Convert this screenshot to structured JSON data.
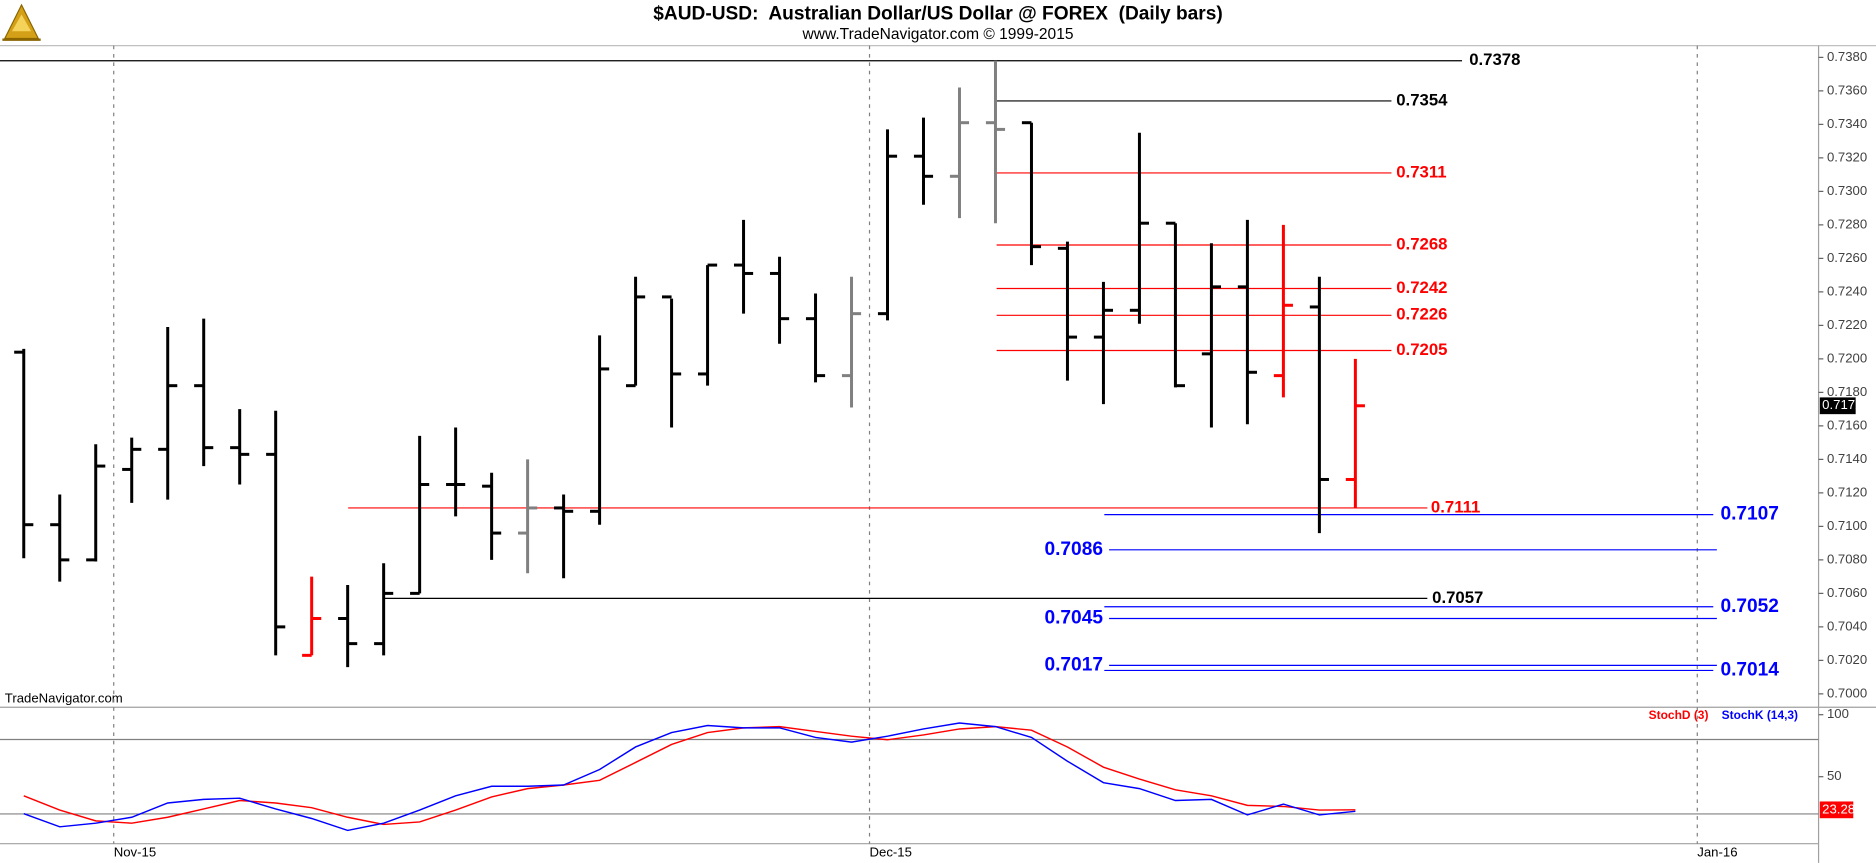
{
  "chart_data": [
    {
      "type": "ohlc",
      "title": "$AUD-USD:  Australian Dollar/US Dollar @ FOREX  (Daily bars)",
      "subtitle": "www.TradeNavigator.com © 1999-2015",
      "watermark": "TradeNavigator.com",
      "categories": [
        null,
        null,
        null,
        null,
        null,
        null,
        null,
        null,
        null,
        null,
        null,
        null,
        null,
        null,
        null,
        null,
        null,
        null,
        null,
        null,
        null,
        null,
        null,
        null,
        null,
        null,
        null,
        null,
        null,
        null,
        null,
        null,
        null,
        null,
        null,
        null,
        null,
        null
      ],
      "open": [
        0.7204,
        0.7101,
        0.708,
        0.7134,
        0.7146,
        0.7184,
        0.7147,
        0.7143,
        0.7023,
        0.7045,
        0.703,
        0.706,
        0.7125,
        0.7124,
        0.7096,
        0.7111,
        0.7109,
        0.7184,
        0.7237,
        0.7191,
        0.7256,
        0.7251,
        0.7224,
        0.719,
        0.7227,
        0.7321,
        0.7309,
        0.7341,
        0.7341,
        0.7266,
        0.7213,
        0.7229,
        0.7281,
        0.7203,
        0.7243,
        0.719,
        0.7231,
        0.7128
      ],
      "high": [
        0.7206,
        0.7119,
        0.7149,
        0.7153,
        0.7219,
        0.7224,
        0.717,
        0.7169,
        0.707,
        0.7065,
        0.7078,
        0.7154,
        0.7159,
        0.7132,
        0.714,
        0.7119,
        0.7214,
        0.7249,
        0.7236,
        0.7256,
        0.7283,
        0.7261,
        0.7239,
        0.7249,
        0.7337,
        0.7344,
        0.7362,
        0.7378,
        0.7341,
        0.727,
        0.7246,
        0.7335,
        0.7281,
        0.7269,
        0.7283,
        0.728,
        0.7249,
        0.72
      ],
      "low": [
        0.7081,
        0.7067,
        0.7079,
        0.7114,
        0.7116,
        0.7136,
        0.7125,
        0.7023,
        0.7023,
        0.7016,
        0.7023,
        0.706,
        0.7106,
        0.708,
        0.7072,
        0.7069,
        0.7101,
        0.7184,
        0.7159,
        0.7184,
        0.7227,
        0.7209,
        0.7186,
        0.7171,
        0.7223,
        0.7292,
        0.7284,
        0.7281,
        0.7256,
        0.7187,
        0.7173,
        0.7221,
        0.7183,
        0.7159,
        0.7161,
        0.7177,
        0.7096,
        0.7111
      ],
      "close": [
        0.7101,
        0.708,
        0.7136,
        0.7146,
        0.7184,
        0.7147,
        0.7143,
        0.704,
        0.7045,
        0.703,
        0.706,
        0.7125,
        0.7125,
        0.7096,
        0.7111,
        0.7109,
        0.7194,
        0.7237,
        0.7191,
        0.7256,
        0.7251,
        0.7224,
        0.719,
        0.7227,
        0.7321,
        0.7309,
        0.7341,
        0.7337,
        0.7267,
        0.7213,
        0.7229,
        0.7281,
        0.7184,
        0.7243,
        0.7192,
        0.7232,
        0.7128,
        0.7172
      ],
      "bar_colors": [
        "#000000",
        "#000000",
        "#000000",
        "#000000",
        "#000000",
        "#000000",
        "#000000",
        "#000000",
        "#ff0000",
        "#000000",
        "#000000",
        "#000000",
        "#000000",
        "#000000",
        "#808080",
        "#000000",
        "#000000",
        "#000000",
        "#000000",
        "#000000",
        "#000000",
        "#000000",
        "#000000",
        "#808080",
        "#000000",
        "#000000",
        "#808080",
        "#808080",
        "#000000",
        "#000000",
        "#000000",
        "#000000",
        "#000000",
        "#000000",
        "#000000",
        "#ff0000",
        "#000000",
        "#ff0000"
      ],
      "xlim": [
        -0.66,
        49.87
      ],
      "xticks": [
        {
          "value": 2.5,
          "label": "Nov-15"
        },
        {
          "value": 23.5,
          "label": "Dec-15"
        },
        {
          "value": 46.5,
          "label": "Jan-16"
        }
      ],
      "ylim": [
        0.6992,
        0.7387
      ],
      "yticks": [
        {
          "value": 0.7,
          "label": "0.7000"
        },
        {
          "value": 0.702,
          "label": "0.7020"
        },
        {
          "value": 0.704,
          "label": "0.7040"
        },
        {
          "value": 0.706,
          "label": "0.7060"
        },
        {
          "value": 0.708,
          "label": "0.7080"
        },
        {
          "value": 0.71,
          "label": "0.7100"
        },
        {
          "value": 0.712,
          "label": "0.7120"
        },
        {
          "value": 0.714,
          "label": "0.7140"
        },
        {
          "value": 0.716,
          "label": "0.7160"
        },
        {
          "value": 0.718,
          "label": "0.7180"
        },
        {
          "value": 0.72,
          "label": "0.7200"
        },
        {
          "value": 0.722,
          "label": "0.7220"
        },
        {
          "value": 0.724,
          "label": "0.7240"
        },
        {
          "value": 0.726,
          "label": "0.7260"
        },
        {
          "value": 0.728,
          "label": "0.7280"
        },
        {
          "value": 0.73,
          "label": "0.7300"
        },
        {
          "value": 0.732,
          "label": "0.7320"
        },
        {
          "value": 0.734,
          "label": "0.7340"
        },
        {
          "value": 0.736,
          "label": "0.7360"
        },
        {
          "value": 0.738,
          "label": "0.7380"
        }
      ],
      "grid": true,
      "levels": [
        {
          "value": 0.7378,
          "color": "#000000"
        },
        {
          "value": 0.7354,
          "color": "#000000"
        },
        {
          "value": 0.7311,
          "color": "#ff0000"
        },
        {
          "value": 0.7268,
          "color": "#ff0000"
        },
        {
          "value": 0.7242,
          "color": "#ff0000"
        },
        {
          "value": 0.7226,
          "color": "#ff0000"
        },
        {
          "value": 0.7205,
          "color": "#ff0000"
        },
        {
          "value": 0.7111,
          "color": "#ff0000"
        },
        {
          "value": 0.7107,
          "color": "#0000ff"
        },
        {
          "value": 0.7086,
          "color": "#0000ff"
        },
        {
          "value": 0.7057,
          "color": "#000000"
        },
        {
          "value": 0.7052,
          "color": "#0000ff"
        },
        {
          "value": 0.7045,
          "color": "#0000ff"
        },
        {
          "value": 0.7017,
          "color": "#0000ff"
        },
        {
          "value": 0.7014,
          "color": "#0000ff"
        }
      ]
    },
    {
      "type": "line",
      "series": [
        {
          "name": "StochD (3)",
          "color": "#ff0000",
          "values": [
            34.6,
            23.1,
            14.4,
            12.5,
            17.3,
            24.0,
            30.8,
            28.8,
            25.0,
            17.3,
            11.5,
            13.5,
            23.1,
            33.7,
            40.4,
            43.3,
            47.1,
            61.5,
            76.0,
            85.6,
            89.4,
            90.4,
            86.5,
            82.7,
            79.8,
            83.7,
            88.5,
            90.4,
            87.5,
            74.0,
            57.7,
            48.1,
            39.4,
            34.6,
            26.9,
            26.0,
            23.1,
            23.28
          ]
        },
        {
          "name": "StochK (14,3)",
          "color": "#0000ff",
          "values": [
            20.2,
            9.6,
            12.5,
            17.3,
            28.8,
            31.7,
            32.7,
            24.0,
            16.3,
            6.7,
            12.5,
            23.1,
            34.6,
            42.3,
            42.3,
            43.3,
            55.8,
            74.0,
            85.6,
            91.3,
            89.4,
            89.4,
            81.7,
            77.9,
            82.7,
            88.5,
            93.3,
            90.4,
            81.7,
            62.5,
            45.2,
            40.4,
            30.8,
            31.7,
            19.2,
            27.9,
            19.2,
            22.1
          ]
        }
      ],
      "xlim": [
        -0.66,
        49.87
      ],
      "ylim": [
        -4,
        106
      ],
      "yticks": [
        50,
        100
      ],
      "reference_lines": [
        20,
        80
      ],
      "grid": true
    }
  ]
}
